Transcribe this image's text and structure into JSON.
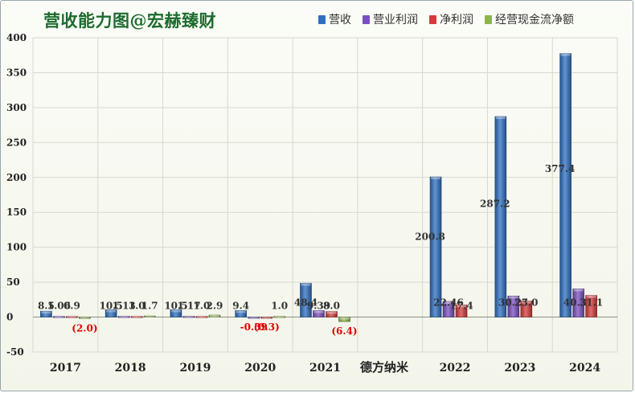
{
  "title": "营收能力图@宏赫臻财",
  "extra_label": "德方纳米",
  "colors": {
    "revenue": "#2f6fc0",
    "op_profit": "#7a4fbf",
    "net_profit": "#d43b3b",
    "cashflow": "#8db64a",
    "title": "#1b6b2e",
    "negative_label": "#e00000"
  },
  "chart_data": {
    "type": "bar",
    "title": "营收能力图@宏赫臻财",
    "categories": [
      "2017",
      "2018",
      "2019",
      "2020",
      "2021",
      "",
      "2022",
      "2023",
      "2024"
    ],
    "ylim": [
      -50,
      400
    ],
    "yticks": [
      -50,
      0,
      50,
      100,
      150,
      200,
      250,
      300,
      350,
      400
    ],
    "grid": true,
    "legend_position": "top-right",
    "series": [
      {
        "name": "营收",
        "color": "#2f6fc0",
        "values": [
          8.5,
          10.5,
          10.5,
          9.4,
          48.4,
          null,
          200.8,
          287.2,
          377.4
        ],
        "labels": [
          "8.5",
          "10.5",
          "10.5",
          "9.4",
          "48.4",
          "",
          "200.8",
          "287.2",
          "377.4"
        ]
      },
      {
        "name": "营业利润",
        "color": "#7a4fbf",
        "values": [
          1.06,
          1.13,
          1.17,
          -0.39,
          9.39,
          null,
          22.46,
          30.25,
          40.39
        ],
        "labels": [
          "1.06",
          "1.13",
          "1.17",
          "-0.39",
          "9.39",
          "",
          "22.46",
          "30.25",
          "40.39"
        ]
      },
      {
        "name": "净利润",
        "color": "#d43b3b",
        "values": [
          0.9,
          1.0,
          1.0,
          -0.3,
          8.0,
          null,
          17.4,
          23.0,
          31.1
        ],
        "labels": [
          "0.9",
          "1.0",
          "1.0",
          "(0.3)",
          "8.0",
          "",
          "17.4",
          "23.0",
          "31.1"
        ]
      },
      {
        "name": "经营现金流净额",
        "color": "#8db64a",
        "values": [
          -2.0,
          1.7,
          2.9,
          1.0,
          -6.4,
          null,
          null,
          null,
          null
        ],
        "labels": [
          "(2.0)",
          "1.7",
          "2.9",
          "1.0",
          "(6.4)",
          "",
          "",
          "",
          ""
        ]
      }
    ]
  }
}
